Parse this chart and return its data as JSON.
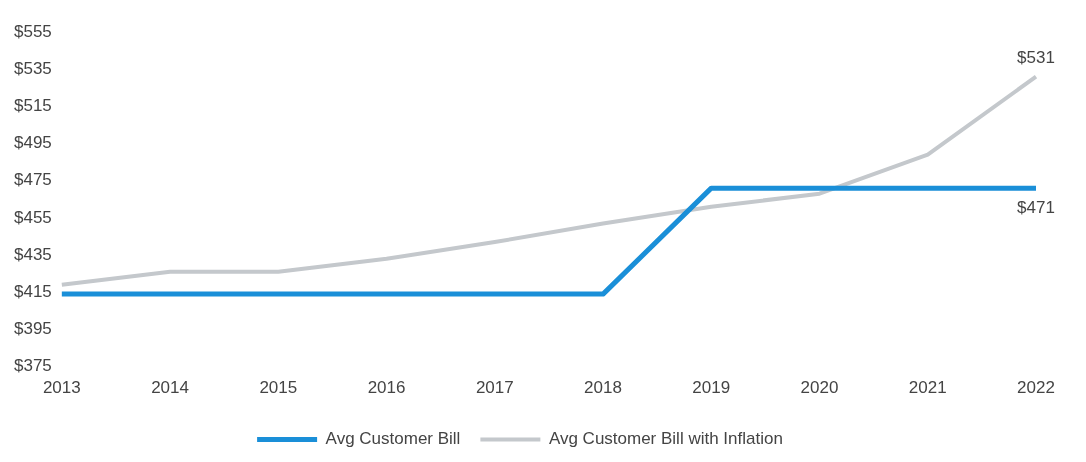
{
  "chart_data": {
    "type": "line",
    "categories": [
      "2013",
      "2014",
      "2015",
      "2016",
      "2017",
      "2018",
      "2019",
      "2020",
      "2021",
      "2022"
    ],
    "series": [
      {
        "name": "Avg Customer Bill",
        "color": "#1a8fd8",
        "values": [
          414,
          414,
          414,
          414,
          414,
          414,
          471,
          471,
          471,
          471
        ],
        "value_labels": [
          null,
          null,
          null,
          null,
          null,
          null,
          null,
          null,
          null,
          "$471"
        ]
      },
      {
        "name": "Avg Customer Bill with Inflation",
        "color": "#c4c8cc",
        "values": [
          419,
          426,
          426,
          433,
          442,
          452,
          461,
          468,
          489,
          531
        ],
        "value_labels": [
          null,
          null,
          null,
          null,
          null,
          null,
          null,
          null,
          null,
          "$531"
        ]
      }
    ],
    "ylim": [
      375,
      555
    ],
    "yticks": [
      {
        "value": 375,
        "label": "$375"
      },
      {
        "value": 395,
        "label": "$395"
      },
      {
        "value": 415,
        "label": "$415"
      },
      {
        "value": 435,
        "label": "$435"
      },
      {
        "value": 455,
        "label": "$455"
      },
      {
        "value": 475,
        "label": "$475"
      },
      {
        "value": 495,
        "label": "$495"
      },
      {
        "value": 515,
        "label": "$515"
      },
      {
        "value": 535,
        "label": "$535"
      },
      {
        "value": 555,
        "label": "$555"
      }
    ],
    "grid": false,
    "legend": "bottom",
    "marker": "none",
    "line_style": "solid"
  }
}
